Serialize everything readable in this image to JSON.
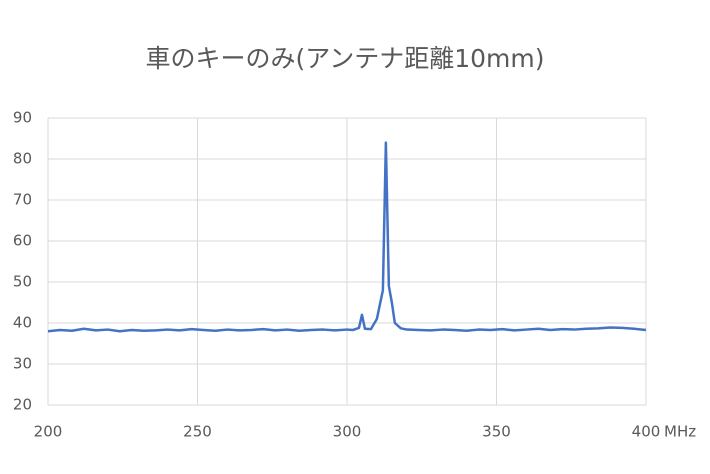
{
  "chart_data": {
    "type": "line",
    "title": "車のキーのみ(アンテナ距離10mm)",
    "x_label": "MHz",
    "x": [
      200,
      204,
      208,
      212,
      216,
      220,
      224,
      228,
      232,
      236,
      240,
      244,
      248,
      252,
      256,
      260,
      264,
      268,
      272,
      276,
      280,
      284,
      288,
      292,
      296,
      300,
      302,
      304,
      305,
      306,
      308,
      310,
      312,
      313,
      314,
      315,
      316,
      318,
      320,
      324,
      328,
      332,
      336,
      340,
      344,
      348,
      352,
      356,
      360,
      364,
      368,
      372,
      376,
      380,
      384,
      388,
      392,
      396,
      400
    ],
    "values": [
      38,
      38.3,
      38.1,
      38.6,
      38.2,
      38.4,
      38,
      38.3,
      38.1,
      38.2,
      38.4,
      38.2,
      38.5,
      38.3,
      38.1,
      38.4,
      38.2,
      38.3,
      38.5,
      38.2,
      38.4,
      38.1,
      38.3,
      38.4,
      38.2,
      38.4,
      38.3,
      38.8,
      42,
      38.6,
      38.5,
      41,
      48,
      84,
      49,
      45,
      40,
      38.7,
      38.4,
      38.3,
      38.2,
      38.4,
      38.3,
      38.1,
      38.4,
      38.3,
      38.5,
      38.2,
      38.4,
      38.6,
      38.3,
      38.5,
      38.4,
      38.6,
      38.7,
      38.9,
      38.8,
      38.6,
      38.3
    ],
    "color": "#4472c4",
    "xlim": [
      200,
      400
    ],
    "xticks": [
      200,
      250,
      300,
      350,
      400
    ],
    "ylim": [
      20,
      90
    ],
    "yticks": [
      20,
      30,
      40,
      50,
      60,
      70,
      80,
      90
    ],
    "grid": true
  }
}
